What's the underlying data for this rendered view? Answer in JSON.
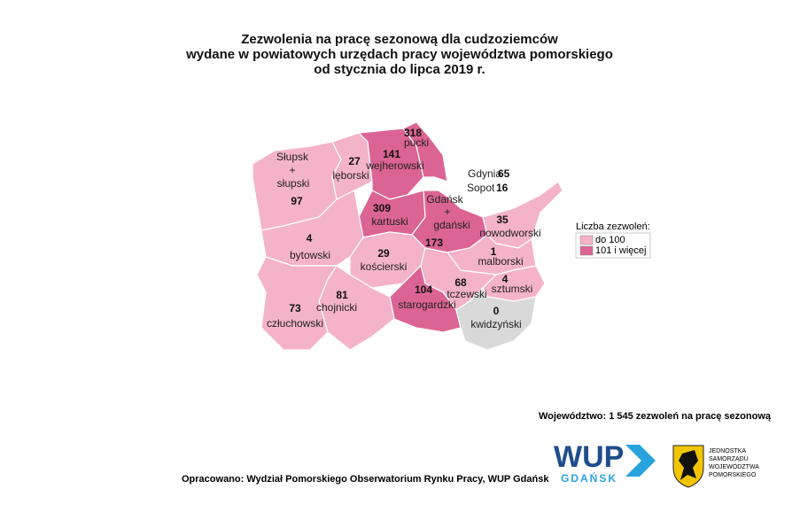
{
  "title": [
    "Zezwolenia na pracę sezonową dla cudzoziemców",
    "wydane w powiatowych urzędach pracy województwa pomorskiego",
    "od stycznia do lipca 2019 r."
  ],
  "regions": [
    {
      "name": [
        "Słupsk",
        "+",
        "słupski"
      ],
      "value": 97,
      "color": "#f4b3c9"
    },
    {
      "name": [
        "lęborski"
      ],
      "value": 27,
      "color": "#f4b3c9"
    },
    {
      "name": [
        "wejherowski"
      ],
      "value": 141,
      "color": "#dc6494"
    },
    {
      "name": [
        "pucki"
      ],
      "value": 318,
      "color": "#dc6494"
    },
    {
      "name": [
        "Gdynia"
      ],
      "value": 65,
      "color": "#ffffff"
    },
    {
      "name": [
        "Sopot"
      ],
      "value": 16,
      "color": "#ffffff"
    },
    {
      "name": [
        "kartuski"
      ],
      "value": 309,
      "color": "#dc6494"
    },
    {
      "name": [
        "Gdańsk",
        "+",
        "gdański"
      ],
      "value": 173,
      "color": "#dc6494"
    },
    {
      "name": [
        "nowodworski"
      ],
      "value": 35,
      "color": "#f4b3c9"
    },
    {
      "name": [
        "bytowski"
      ],
      "value": 4,
      "color": "#f4b3c9"
    },
    {
      "name": [
        "kościerski"
      ],
      "value": 29,
      "color": "#f4b3c9"
    },
    {
      "name": [
        "malborski"
      ],
      "value": 1,
      "color": "#f4b3c9"
    },
    {
      "name": [
        "tczewski"
      ],
      "value": 68,
      "color": "#f4b3c9"
    },
    {
      "name": [
        "sztumski"
      ],
      "value": 4,
      "color": "#f4b3c9"
    },
    {
      "name": [
        "starogardzki"
      ],
      "value": 104,
      "color": "#dc6494"
    },
    {
      "name": [
        "chojnicki"
      ],
      "value": 81,
      "color": "#f4b3c9"
    },
    {
      "name": [
        "człuchowski"
      ],
      "value": 73,
      "color": "#f4b3c9"
    },
    {
      "name": [
        "kwidzyński"
      ],
      "value": 0,
      "color": "#d9d9d9"
    }
  ],
  "legend": {
    "title": "Liczba zezwoleń:",
    "items": [
      {
        "label": "do 100",
        "color": "#f4b3c9"
      },
      {
        "label": "101 i więcej",
        "color": "#dc6494"
      }
    ]
  },
  "summary": "Województwo: 1 545 zezwoleń na pracę sezonową",
  "source": "Opracowano: Wydział Pomorskiego Obserwatorium Rynku Pracy, WUP Gdańsk",
  "logos": {
    "wup": [
      "WUP",
      "GDAŃSK"
    ],
    "emblem": [
      "JEDNOSTKA",
      "SAMORZĄDU",
      "WOJEWÓDZTWA",
      "POMORSKIEGO"
    ]
  }
}
